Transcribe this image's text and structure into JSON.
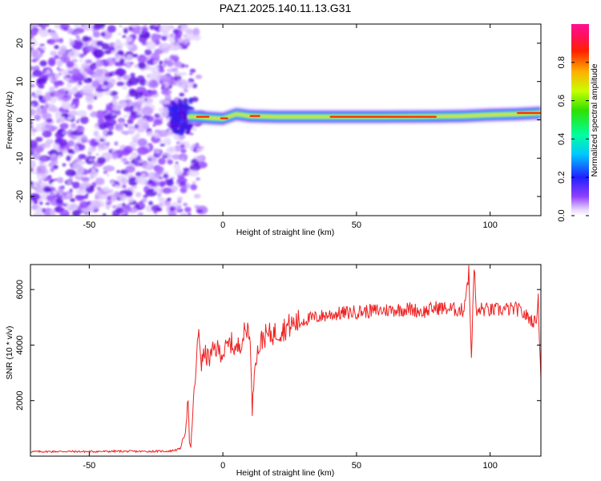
{
  "title": "PAZ1.2025.140.11.13.G31",
  "chart_data": [
    {
      "type": "heatmap",
      "xlabel": "Height of straight line (km)",
      "ylabel": "Frequency (Hz)",
      "xlim": [
        -72,
        119
      ],
      "ylim": [
        -25,
        25
      ],
      "xticks": [
        -50,
        0,
        50,
        100
      ],
      "yticks": [
        -20,
        -10,
        0,
        10,
        20
      ],
      "noise_region_x": [
        -72,
        -13
      ],
      "signal_ridge": {
        "x": [
          -13,
          -10,
          -5,
          0,
          5,
          10,
          20,
          40,
          60,
          80,
          90,
          100,
          110,
          119
        ],
        "frequency": [
          0.8,
          0.8,
          0.5,
          0.3,
          1.5,
          1.0,
          0.8,
          0.8,
          0.8,
          0.9,
          1.0,
          1.3,
          1.5,
          1.8
        ]
      },
      "colorbar": {
        "label": "Normalized spectral amplitude",
        "range": [
          0,
          1
        ],
        "ticks": [
          0.0,
          0.2,
          0.4,
          0.6,
          0.8
        ]
      }
    },
    {
      "type": "line",
      "xlabel": "Height of straight line (km)",
      "ylabel": "SNR (10 * v/v)",
      "xlim": [
        -72,
        119
      ],
      "ylim": [
        0,
        6900
      ],
      "xticks": [
        -50,
        0,
        50,
        100
      ],
      "yticks": [
        2000,
        4000,
        6000
      ],
      "series": [
        {
          "color": "#ee2222",
          "x": [
            -72,
            -60,
            -50,
            -40,
            -30,
            -20,
            -16,
            -14,
            -13,
            -12.5,
            -12,
            -11,
            -10,
            -9,
            -8,
            -7,
            -5,
            -3,
            0,
            3,
            5,
            8,
            10,
            11,
            12,
            15,
            20,
            25,
            30,
            35,
            40,
            50,
            60,
            70,
            75,
            80,
            85,
            90,
            92,
            93,
            94,
            95,
            96,
            100,
            110,
            117,
            118,
            119
          ],
          "values": [
            160,
            170,
            165,
            175,
            170,
            180,
            260,
            900,
            2100,
            450,
            300,
            2000,
            3200,
            4600,
            3300,
            3700,
            3500,
            3900,
            3700,
            4100,
            3800,
            4400,
            4700,
            1600,
            3500,
            4300,
            4450,
            4700,
            4900,
            5000,
            5100,
            5200,
            5250,
            5300,
            5200,
            5350,
            5300,
            5250,
            6600,
            3600,
            6800,
            5000,
            5300,
            5250,
            5300,
            4800,
            5600,
            2800
          ]
        }
      ]
    }
  ]
}
